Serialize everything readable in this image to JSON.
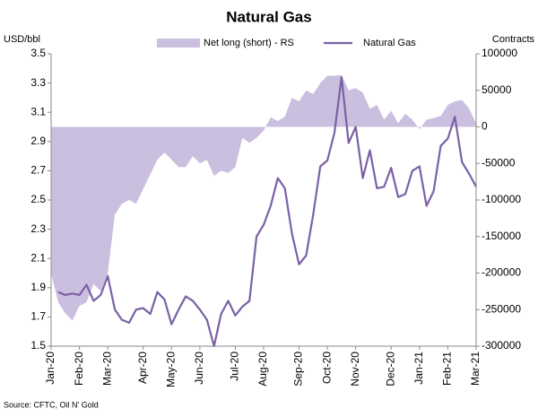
{
  "chart_data": {
    "type": "line",
    "title": "Natural Gas",
    "y_label": "USD/bbl",
    "y2_label": "Contracts",
    "source": "Source: CFTC, Oil N' Gold",
    "categories": [
      "Jan-20",
      null,
      null,
      null,
      "Feb-20",
      null,
      null,
      null,
      "Mar-20",
      null,
      null,
      null,
      null,
      "Apr-20",
      null,
      null,
      null,
      "May-20",
      null,
      null,
      null,
      "Jun-20",
      null,
      null,
      null,
      null,
      "Jul-20",
      null,
      null,
      null,
      "Aug-20",
      null,
      null,
      null,
      null,
      "Sep-20",
      null,
      null,
      null,
      "Oct-20",
      null,
      null,
      null,
      "Nov-20",
      null,
      null,
      null,
      null,
      "Dec-20",
      null,
      null,
      null,
      "Jan-21",
      null,
      null,
      null,
      "Feb-21",
      null,
      null,
      null,
      "Mar-21"
    ],
    "series": [
      {
        "name": "Net long (short) - RS",
        "type": "area",
        "axis": "y2",
        "color": "#cbbfdf",
        "values": [
          -200000,
          -240000,
          -255000,
          -265000,
          -245000,
          -240000,
          -215000,
          -225000,
          -200000,
          -120000,
          -105000,
          -100000,
          -105000,
          -85000,
          -65000,
          -45000,
          -35000,
          -45000,
          -55000,
          -55000,
          -40000,
          -50000,
          -45000,
          -67000,
          -60000,
          -63000,
          -55000,
          -15000,
          -22000,
          -15000,
          -5000,
          13000,
          8000,
          14000,
          40000,
          35000,
          50000,
          45000,
          60000,
          70000,
          70000,
          71000,
          50000,
          53000,
          47000,
          25000,
          30000,
          10000,
          22000,
          5000,
          18000,
          10000,
          -3000,
          10000,
          12000,
          15000,
          30000,
          35000,
          37000,
          25000,
          5000
        ]
      },
      {
        "name": "Natural Gas",
        "type": "line",
        "axis": "y",
        "color": "#7a61a5",
        "values": [
          null,
          1.87,
          1.85,
          1.86,
          1.85,
          1.92,
          1.81,
          1.85,
          1.98,
          1.75,
          1.68,
          1.66,
          1.75,
          1.76,
          1.72,
          1.87,
          1.82,
          1.65,
          1.75,
          1.84,
          1.81,
          1.75,
          1.68,
          1.5,
          1.72,
          1.81,
          1.71,
          1.77,
          1.81,
          2.25,
          2.33,
          2.46,
          2.65,
          2.58,
          2.27,
          2.06,
          2.12,
          2.4,
          2.73,
          2.77,
          2.96,
          3.34,
          2.89,
          3.0,
          2.65,
          2.84,
          2.58,
          2.59,
          2.72,
          2.52,
          2.54,
          2.7,
          2.73,
          2.46,
          2.56,
          2.87,
          2.92,
          3.07,
          2.76,
          2.68,
          2.59
        ]
      }
    ],
    "ylim": [
      1.5,
      3.5
    ],
    "yticks": [
      1.5,
      1.7,
      1.9,
      2.1,
      2.3,
      2.5,
      2.7,
      2.9,
      3.1,
      3.3,
      3.5
    ],
    "y2lim": [
      -300000,
      100000
    ],
    "y2ticks": [
      -300000,
      -250000,
      -200000,
      -150000,
      -100000,
      -50000,
      0,
      50000,
      100000
    ],
    "legend": "top"
  }
}
